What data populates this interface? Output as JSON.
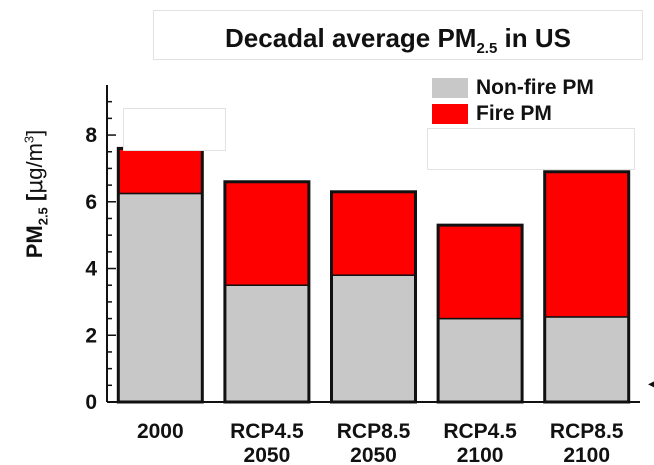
{
  "chart_data": {
    "type": "bar",
    "stacked": true,
    "title_prefix": "Decadal average PM",
    "title_sub": "2.5",
    "title_suffix": " in US",
    "ylabel_prefix": "PM",
    "ylabel_sub": "2.5",
    "ylabel_unit_open": " [",
    "ylabel_unit_mu": "μ",
    "ylabel_unit_g": "g/m",
    "ylabel_unit_sup": "3",
    "ylabel_unit_close": "]",
    "categories": [
      {
        "line1": "2000",
        "line2": ""
      },
      {
        "line1": "RCP4.5",
        "line2": "2050"
      },
      {
        "line1": "RCP8.5",
        "line2": "2050"
      },
      {
        "line1": "RCP4.5",
        "line2": "2100"
      },
      {
        "line1": "RCP8.5",
        "line2": "2100"
      }
    ],
    "series": [
      {
        "name": "Non-fire PM",
        "color": "#c8c8c8",
        "values": [
          6.25,
          3.5,
          3.8,
          2.5,
          2.55
        ]
      },
      {
        "name": "Fire PM",
        "color": "#ff0000",
        "values": [
          1.35,
          3.1,
          2.5,
          2.8,
          4.35
        ]
      }
    ],
    "ylim": [
      0,
      9.5
    ],
    "yticks": [
      0,
      2,
      4,
      6,
      8
    ],
    "legend_position": "top-right",
    "grid": false
  }
}
